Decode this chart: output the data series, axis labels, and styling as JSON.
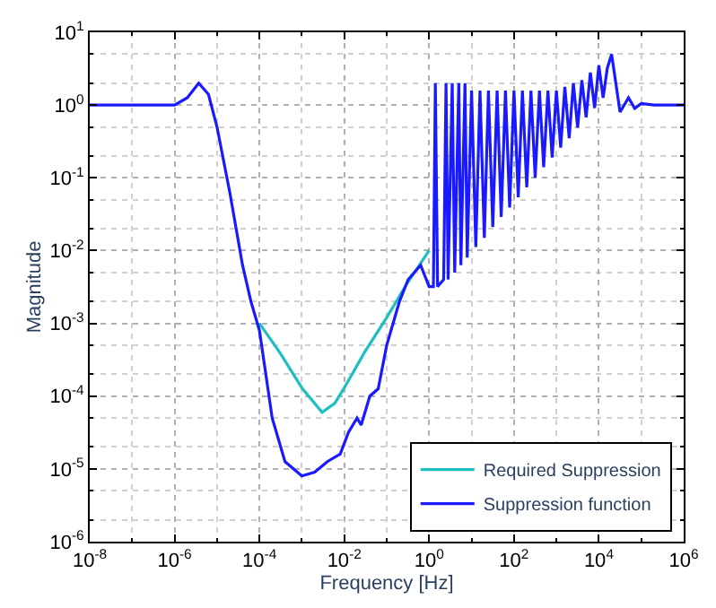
{
  "chart_data": {
    "type": "line",
    "xlabel": "Frequency [Hz]",
    "ylabel": "Magnitude",
    "log": "xy",
    "grid": true,
    "legend": "bottom right",
    "xlim": [
      1e-08,
      1000000.0
    ],
    "ylim": [
      1e-06,
      10
    ],
    "xticks": [
      {
        "value": 1e-08,
        "label": "10$^{-8}$"
      },
      {
        "value": 1e-06,
        "label": "10$^{-6}$"
      },
      {
        "value": 0.0001,
        "label": "10$^{-4}$"
      },
      {
        "value": 0.01,
        "label": "10$^{-2}$"
      },
      {
        "value": 1,
        "label": "10$^{0}$"
      },
      {
        "value": 100,
        "label": "10$^{2}$"
      },
      {
        "value": 10000,
        "label": "10$^{4}$"
      },
      {
        "value": 1000000.0,
        "label": "10$^{6}$"
      }
    ],
    "yticks": [
      {
        "value": 1e-06,
        "label": "10$^{-6}$"
      },
      {
        "value": 1e-05,
        "label": "10$^{-5}$"
      },
      {
        "value": 0.0001,
        "label": "10$^{-4}$"
      },
      {
        "value": 0.001,
        "label": "10$^{-3}$"
      },
      {
        "value": 0.01,
        "label": "10$^{-2}$"
      },
      {
        "value": 0.1,
        "label": "10$^{-1}$"
      },
      {
        "value": 1,
        "label": "10$^{0}$"
      },
      {
        "value": 10,
        "label": "10$^{1}$"
      }
    ],
    "series": [
      {
        "name": "Required Suppression",
        "color": "#1fbfbf",
        "x": [
          0.0001,
          0.0003,
          0.001,
          0.003,
          0.006,
          0.01,
          0.03,
          0.1,
          0.3,
          1
        ],
        "values": [
          0.001,
          0.0004,
          0.00013,
          6e-05,
          8e-05,
          0.00013,
          0.0004,
          0.0012,
          0.0035,
          0.01
        ]
      },
      {
        "name": "Suppression function",
        "color": "#1a1aff",
        "x": [
          1e-08,
          1e-07,
          1e-06,
          2e-06,
          3.7e-06,
          6.3e-06,
          1e-05,
          2e-05,
          4e-05,
          6.3e-05,
          0.0001,
          0.0002,
          0.0004,
          0.001,
          0.002,
          0.004,
          0.008,
          0.0126,
          0.02,
          0.025,
          0.04,
          0.063,
          0.1,
          0.2,
          0.32,
          0.63,
          1,
          1.26,
          1.4,
          1.58,
          2.2,
          2.5,
          2.8,
          3.5,
          4,
          5,
          5.6,
          7,
          7.9,
          10,
          12.6,
          15.8,
          20,
          25,
          31.6,
          40,
          50,
          63,
          79,
          100,
          126,
          158,
          200,
          251,
          316,
          398,
          501,
          631,
          794,
          1000,
          1260,
          1580,
          2000,
          2510,
          3160,
          3980,
          5010,
          6310,
          7940,
          10000,
          12600,
          15800,
          20000,
          31600,
          50000,
          70000,
          100000.0,
          200000.0,
          1000000.0
        ],
        "values": [
          1,
          1,
          1,
          1.26,
          2,
          1.4,
          0.5,
          0.063,
          0.0063,
          0.002,
          0.0008,
          5e-05,
          1.26e-05,
          8e-06,
          9e-06,
          1.26e-05,
          1.6e-05,
          3.2e-05,
          5e-05,
          4e-05,
          0.0001,
          0.000126,
          0.0005,
          0.002,
          0.004,
          0.0063,
          0.0032,
          0.0032,
          2,
          0.0032,
          0.004,
          2,
          0.004,
          2,
          0.005,
          2,
          0.0063,
          2,
          0.008,
          1.58,
          0.0112,
          1.58,
          0.015,
          1.58,
          0.021,
          1.58,
          0.029,
          1.58,
          0.039,
          1.58,
          0.054,
          1.58,
          0.074,
          1.58,
          0.1,
          1.58,
          0.14,
          1.58,
          0.19,
          1.58,
          0.26,
          1.78,
          0.35,
          2,
          0.49,
          2.2,
          0.68,
          2.8,
          0.91,
          3.5,
          1.26,
          3.2,
          5,
          0.8,
          1.26,
          0.9,
          1.05,
          1,
          1
        ]
      }
    ]
  }
}
